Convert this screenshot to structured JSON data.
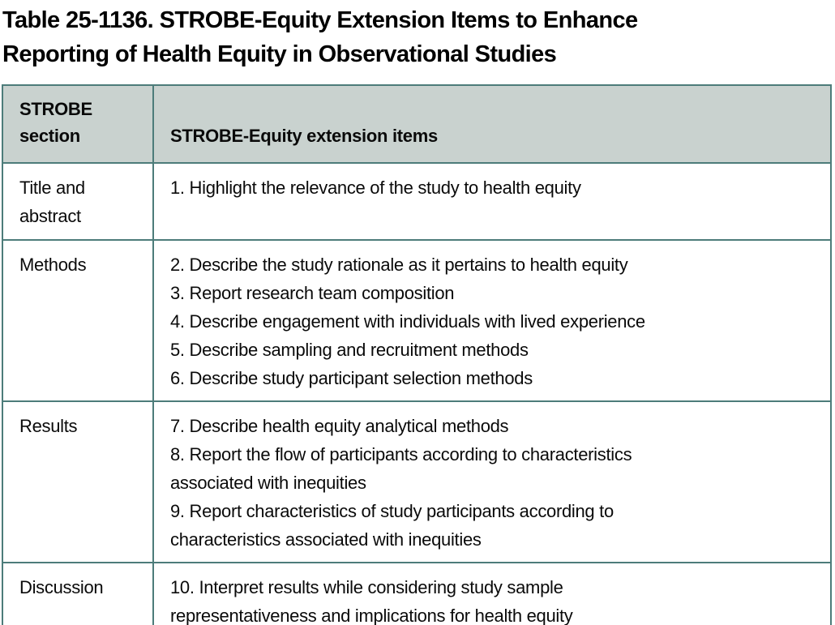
{
  "title": {
    "line1": "Table 25-1136. STROBE-Equity Extension Items to Enhance",
    "line2": "Reporting of Health Equity in Observational Studies"
  },
  "table": {
    "headers": {
      "section": "STROBE\nsection",
      "items": "STROBE-Equity extension items"
    },
    "rows": [
      {
        "section": "Title and abstract",
        "items": [
          "1. Highlight the relevance of the study to health equity"
        ]
      },
      {
        "section": "Methods",
        "items": [
          "2. Describe the study rationale as it pertains to health equity",
          "3. Report research team composition",
          "4. Describe engagement with individuals with lived experience",
          "5. Describe sampling and recruitment methods",
          "6. Describe study participant selection methods"
        ]
      },
      {
        "section": "Results",
        "items": [
          "7. Describe health equity analytical methods",
          "8. Report the flow of participants according to characteristics\nassociated with inequities",
          "9. Report characteristics of study participants according to\ncharacteristics associated with inequities"
        ]
      },
      {
        "section": "Discussion",
        "items": [
          "10. Interpret results while considering study sample\nrepresentativeness and implications for health equity"
        ]
      }
    ]
  },
  "colors": {
    "border_teal": "#4d7c7a",
    "header_fill": "#c9d2cf",
    "text": "#0a0a0a",
    "background": "#ffffff"
  }
}
